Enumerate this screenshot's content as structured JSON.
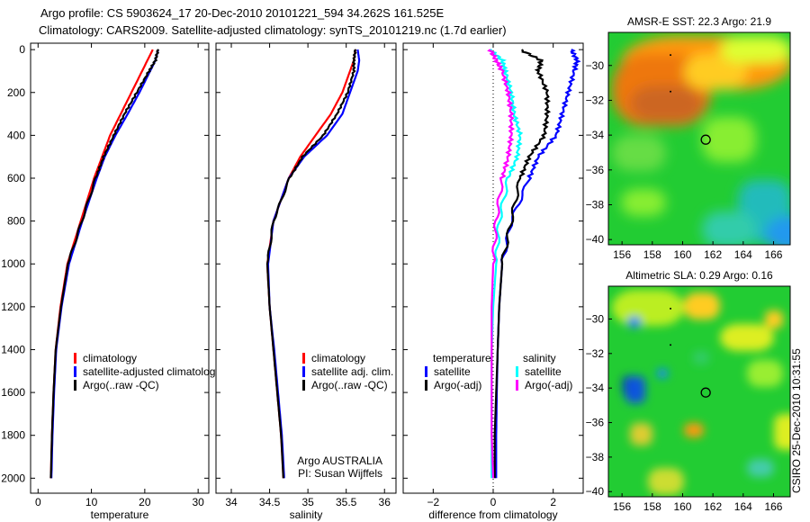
{
  "title_line1": "Argo profile: CS 5903624_17 20-Dec-2010 20101221_594 34.262S 161.525E",
  "title_line2": "Climatology: CARS2009. Satellite-adjusted climatology: synTS_20101219.nc (1.7d earlier)",
  "side_label": "CSIRO 25-Dec-2010 10:31:55",
  "chart_data": [
    {
      "type": "line",
      "id": "temperature",
      "xlabel": "temperature",
      "ylabel": "",
      "xlim": [
        -1.4,
        32
      ],
      "ylim": [
        -30,
        2070
      ],
      "xticks": [
        0,
        10,
        20,
        30
      ],
      "yticks": [
        0,
        200,
        400,
        600,
        800,
        1000,
        1200,
        1400,
        1600,
        1800,
        2000
      ],
      "depth": [
        0,
        50,
        100,
        200,
        300,
        400,
        500,
        600,
        800,
        1000,
        1200,
        1400,
        1600,
        1800,
        2000
      ],
      "legend": "lower-right",
      "series": [
        {
          "name": "climatology",
          "color": "#ff0000",
          "values": [
            21.5,
            20.5,
            19.5,
            17.5,
            15.5,
            13.5,
            12,
            10.5,
            8,
            5.5,
            4.2,
            3.3,
            2.9,
            2.6,
            2.4
          ]
        },
        {
          "name": "satellite-adjusted climatology",
          "color": "#0000ff",
          "values": [
            22.5,
            22,
            21,
            19,
            16.8,
            14.5,
            12.5,
            11,
            8.3,
            5.8,
            4.4,
            3.4,
            3.0,
            2.7,
            2.5
          ]
        },
        {
          "name": "Argo(..raw -QC)",
          "color": "#000000",
          "values": [
            22.5,
            22,
            20.8,
            18.5,
            16.2,
            14.2,
            12.3,
            10.8,
            8.2,
            5.6,
            4.3,
            3.3,
            2.9,
            2.6,
            2.4
          ]
        }
      ]
    },
    {
      "type": "line",
      "id": "salinity",
      "xlabel": "salinity",
      "xlim": [
        33.8,
        36.15
      ],
      "ylim": [
        -30,
        2070
      ],
      "xticks": [
        34,
        34.5,
        35,
        35.5,
        36
      ],
      "yticks": [
        0,
        200,
        400,
        600,
        800,
        1000,
        1200,
        1400,
        1600,
        1800,
        2000
      ],
      "depth": [
        0,
        50,
        100,
        200,
        300,
        400,
        500,
        600,
        800,
        1000,
        1200,
        1400,
        1600,
        1800,
        2000
      ],
      "legend": "lower-right",
      "annotation": [
        "Argo AUSTRALIA",
        "PI: Susan Wijffels"
      ],
      "series": [
        {
          "name": "climatology",
          "color": "#ff0000",
          "values": [
            35.62,
            35.6,
            35.55,
            35.45,
            35.3,
            35.1,
            34.9,
            34.75,
            34.55,
            34.47,
            34.5,
            34.55,
            34.6,
            34.65,
            34.68
          ]
        },
        {
          "name": "satellite adj. clim.",
          "color": "#0000ff",
          "values": [
            35.65,
            35.67,
            35.65,
            35.55,
            35.45,
            35.25,
            34.95,
            34.75,
            34.55,
            34.48,
            34.5,
            34.56,
            34.61,
            34.66,
            34.69
          ]
        },
        {
          "name": "Argo(..raw -QC)",
          "color": "#000000",
          "values": [
            35.62,
            35.6,
            35.6,
            35.52,
            35.38,
            35.2,
            34.93,
            34.76,
            34.55,
            34.47,
            34.5,
            34.55,
            34.6,
            34.65,
            34.68
          ]
        }
      ]
    },
    {
      "type": "line",
      "id": "difference",
      "xlabel": "difference from climatology",
      "xlim": [
        -3,
        3
      ],
      "ylim": [
        -30,
        2070
      ],
      "xticks": [
        -2,
        0,
        2
      ],
      "yticks": [
        0,
        200,
        400,
        600,
        800,
        1000,
        1200,
        1400,
        1600,
        1800,
        2000
      ],
      "depth": [
        0,
        50,
        100,
        200,
        300,
        400,
        500,
        600,
        800,
        1000,
        1200,
        1400,
        1600,
        1800,
        2000
      ],
      "legend_headers": [
        "temperature",
        "salinity"
      ],
      "series": [
        {
          "name": "satellite",
          "group": "temperature",
          "color": "#0000ff",
          "values": [
            2.6,
            2.8,
            2.7,
            2.5,
            2.3,
            2.1,
            1.5,
            1.2,
            0.6,
            0.3,
            0.2,
            0.15,
            0.12,
            0.1,
            0.1
          ]
        },
        {
          "name": "Argo(-adj)",
          "group": "temperature",
          "color": "#000000",
          "values": [
            0.9,
            1.6,
            1.5,
            1.8,
            1.8,
            1.7,
            1.2,
            0.9,
            0.6,
            0.3,
            0.2,
            0.15,
            0.1,
            0.05,
            0.05
          ]
        },
        {
          "name": "satellite",
          "group": "salinity",
          "color": "#00ffff",
          "values": [
            -0.1,
            0.3,
            0.4,
            0.6,
            0.7,
            0.9,
            0.8,
            0.5,
            0.2,
            0.1,
            0,
            -0.05,
            -0.05,
            -0.05,
            -0.05
          ]
        },
        {
          "name": "Argo(-adj)",
          "group": "salinity",
          "color": "#ff00ff",
          "values": [
            -0.1,
            0.1,
            0.3,
            0.5,
            0.6,
            0.6,
            0.5,
            0.3,
            0.1,
            0,
            -0.05,
            -0.05,
            -0.05,
            -0.05,
            0
          ]
        }
      ]
    },
    {
      "type": "heatmap",
      "id": "sst-map",
      "title": "AMSR-E SST: 22.3 Argo: 21.9",
      "xlim": [
        155.1,
        167.1
      ],
      "ylim": [
        -40.3,
        -28.1
      ],
      "xticks": [
        156,
        158,
        160,
        162,
        164,
        166
      ],
      "yticks": [
        -30,
        -32,
        -34,
        -36,
        -38,
        -40
      ],
      "argo_position": [
        161.525,
        -34.262
      ]
    },
    {
      "type": "heatmap",
      "id": "sla-map",
      "title": "Altimetric SLA: 0.29 Argo: 0.16",
      "xlim": [
        155.1,
        167.1
      ],
      "ylim": [
        -40.3,
        -28.1
      ],
      "xticks": [
        156,
        158,
        160,
        162,
        164,
        166
      ],
      "yticks": [
        -30,
        -32,
        -34,
        -36,
        -38,
        -40
      ],
      "argo_position": [
        161.525,
        -34.262
      ]
    }
  ]
}
